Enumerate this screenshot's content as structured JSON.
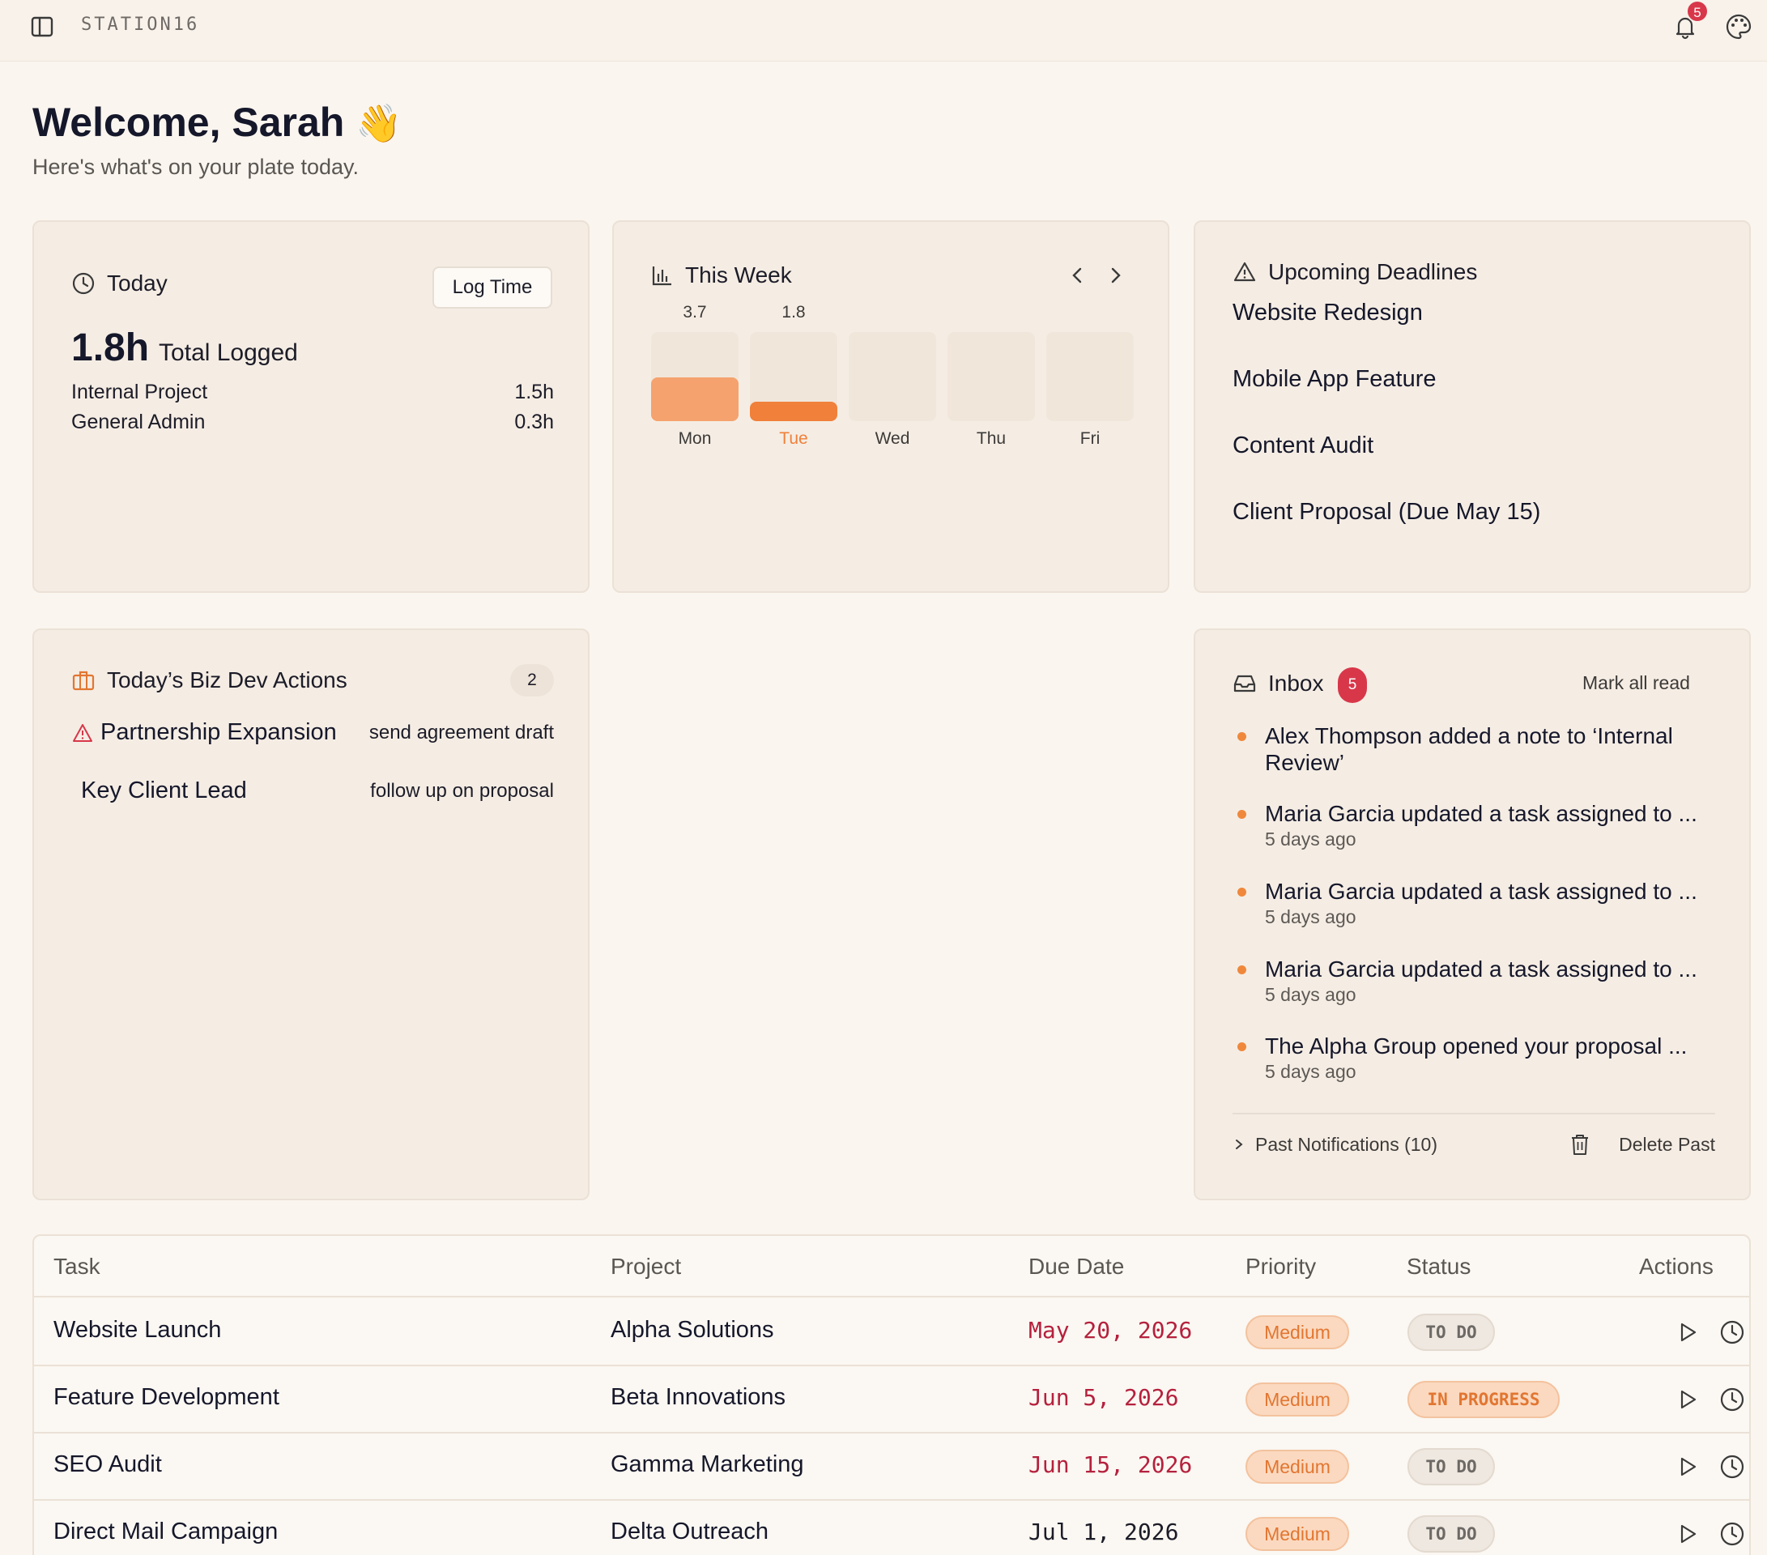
{
  "topbar": {
    "brand": "STATION16",
    "notification_count": "5"
  },
  "header": {
    "welcome": "Welcome, Sarah",
    "wave": "👋",
    "subtitle": "Here's what's on your plate today."
  },
  "today": {
    "title": "Today",
    "log_button": "Log Time",
    "total_value": "1.8h",
    "total_label": "Total Logged",
    "entries": [
      {
        "name": "Internal Project",
        "hours": "1.5h"
      },
      {
        "name": "General Admin",
        "hours": "0.3h"
      }
    ]
  },
  "week": {
    "title": "This Week",
    "accent": "#f5a26e",
    "active_color": "#f0803a",
    "days": [
      {
        "label": "Mon",
        "value": 3.7,
        "value_label": "3.7",
        "active": false
      },
      {
        "label": "Tue",
        "value": 1.8,
        "value_label": "1.8",
        "active": true
      },
      {
        "label": "Wed",
        "value": 0,
        "value_label": "",
        "active": false
      },
      {
        "label": "Thu",
        "value": 0,
        "value_label": "",
        "active": false
      },
      {
        "label": "Fri",
        "value": 0,
        "value_label": "",
        "active": false
      }
    ]
  },
  "deadlines": {
    "title": "Upcoming Deadlines",
    "items": [
      "Website Redesign",
      "Mobile App Feature",
      "Content Audit",
      "Client Proposal (Due May 15)"
    ]
  },
  "bizdev": {
    "title": "Today’s Biz Dev Actions",
    "count": "2",
    "items": [
      {
        "name": "Partnership Expansion",
        "action": "send agreement draft",
        "warning": true
      },
      {
        "name": "Key Client Lead",
        "action": "follow up on proposal",
        "warning": false
      }
    ]
  },
  "inbox": {
    "title": "Inbox",
    "count": "5",
    "mark_all_read": "Mark all read",
    "notifications": [
      {
        "message": "Alex Thompson added a note to ‘Internal Review’",
        "ago": ""
      },
      {
        "message": "Maria Garcia updated a task assigned to ...",
        "ago": "5 days ago"
      },
      {
        "message": "Maria Garcia updated a task assigned to ...",
        "ago": "5 days ago"
      },
      {
        "message": "Maria Garcia updated a task assigned to ...",
        "ago": "5 days ago"
      },
      {
        "message": "The Alpha Group opened your proposal ...",
        "ago": "5 days ago"
      }
    ],
    "past_notifications": "Past Notifications (10)",
    "delete_past": "Delete Past"
  },
  "tasks": {
    "headers": {
      "task": "Task",
      "project": "Project",
      "due": "Due Date",
      "priority": "Priority",
      "status": "Status",
      "actions": "Actions"
    },
    "rows": [
      {
        "task": "Website Launch",
        "project": "Alpha Solutions",
        "due": "May 20, 2026",
        "due_color": "#b5213d",
        "priority": "Medium",
        "status": "TO DO",
        "status_type": "todo"
      },
      {
        "task": "Feature Development",
        "project": "Beta Innovations",
        "due": "Jun 5, 2026",
        "due_color": "#b5213d",
        "priority": "Medium",
        "status": "IN PROGRESS",
        "status_type": "progress"
      },
      {
        "task": "SEO Audit",
        "project": "Gamma Marketing",
        "due": "Jun 15, 2026",
        "due_color": "#b5213d",
        "priority": "Medium",
        "status": "TO DO",
        "status_type": "todo"
      },
      {
        "task": "Direct Mail Campaign",
        "project": "Delta Outreach",
        "due": "Jul 1, 2026",
        "due_color": "#1c1c28",
        "priority": "Medium",
        "status": "TO DO",
        "status_type": "todo"
      }
    ]
  }
}
